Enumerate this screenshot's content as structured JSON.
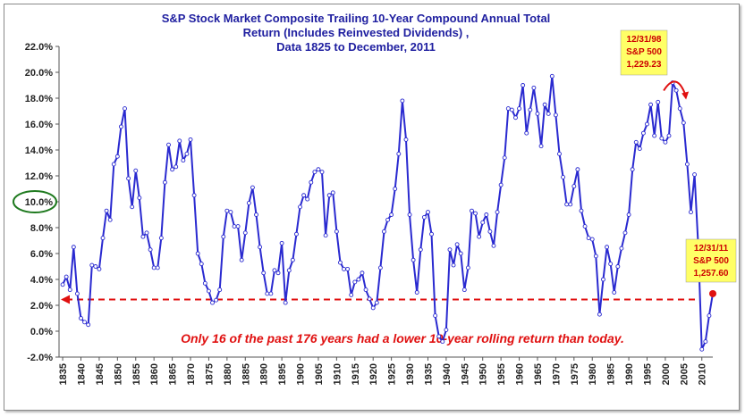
{
  "chart_data": {
    "type": "line",
    "title_lines": [
      "S&P Stock Market Composite Trailing 10-Year Compound Annual Total",
      "Return (Includes Reinvested Dividends) ,",
      "Data 1825 to December, 2011"
    ],
    "xlabel": "",
    "ylabel": "",
    "xlim": [
      1834,
      2013
    ],
    "ylim": [
      -2.0,
      22.0
    ],
    "y_ticks": [
      "-2.0%",
      "0.0%",
      "2.0%",
      "4.0%",
      "6.0%",
      "8.0%",
      "10.0%",
      "12.0%",
      "14.0%",
      "16.0%",
      "18.0%",
      "20.0%",
      "22.0%"
    ],
    "y_tick_values": [
      -2,
      0,
      2,
      4,
      6,
      8,
      10,
      12,
      14,
      16,
      18,
      20,
      22
    ],
    "x_ticks": [
      "1835",
      "1840",
      "1845",
      "1850",
      "1855",
      "1860",
      "1865",
      "1870",
      "1875",
      "1880",
      "1885",
      "1890",
      "1895",
      "1900",
      "1905",
      "1910",
      "1915",
      "1920",
      "1925",
      "1930",
      "1935",
      "1940",
      "1945",
      "1950",
      "1955",
      "1960",
      "1965",
      "1970",
      "1975",
      "1980",
      "1985",
      "1990",
      "1995",
      "2000",
      "2005",
      "2010"
    ],
    "x_tick_values": [
      1835,
      1840,
      1845,
      1850,
      1855,
      1860,
      1865,
      1870,
      1875,
      1880,
      1885,
      1890,
      1895,
      1900,
      1905,
      1910,
      1915,
      1920,
      1925,
      1930,
      1935,
      1940,
      1945,
      1950,
      1955,
      1960,
      1965,
      1970,
      1975,
      1980,
      1985,
      1990,
      1995,
      2000,
      2005,
      2010
    ],
    "grid": false,
    "highlighted_tick": "10.0%",
    "reference_line": {
      "y": 2.45,
      "label": "Only 16 of the past 176 years had a lower  10-year rolling return than today."
    },
    "series": [
      {
        "color": "#2a2ad0",
        "points": [
          [
            1835,
            3.6
          ],
          [
            1836,
            4.2
          ],
          [
            1837,
            3.2
          ],
          [
            1838,
            6.5
          ],
          [
            1839,
            2.9
          ],
          [
            1840,
            1.0
          ],
          [
            1841,
            0.7
          ],
          [
            1842,
            0.5
          ],
          [
            1843,
            5.1
          ],
          [
            1844,
            5.0
          ],
          [
            1845,
            4.8
          ],
          [
            1846,
            7.2
          ],
          [
            1847,
            9.3
          ],
          [
            1848,
            8.6
          ],
          [
            1849,
            12.9
          ],
          [
            1850,
            13.5
          ],
          [
            1851,
            15.8
          ],
          [
            1852,
            17.2
          ],
          [
            1853,
            11.8
          ],
          [
            1854,
            9.6
          ],
          [
            1855,
            12.4
          ],
          [
            1856,
            10.3
          ],
          [
            1857,
            7.3
          ],
          [
            1858,
            7.6
          ],
          [
            1859,
            6.3
          ],
          [
            1860,
            4.9
          ],
          [
            1861,
            4.9
          ],
          [
            1862,
            7.2
          ],
          [
            1863,
            11.5
          ],
          [
            1864,
            14.4
          ],
          [
            1865,
            12.5
          ],
          [
            1866,
            12.7
          ],
          [
            1867,
            14.7
          ],
          [
            1868,
            13.2
          ],
          [
            1869,
            13.7
          ],
          [
            1870,
            14.8
          ],
          [
            1871,
            10.5
          ],
          [
            1872,
            6.0
          ],
          [
            1873,
            5.2
          ],
          [
            1874,
            3.7
          ],
          [
            1875,
            3.1
          ],
          [
            1876,
            2.2
          ],
          [
            1877,
            2.4
          ],
          [
            1878,
            3.2
          ],
          [
            1879,
            7.3
          ],
          [
            1880,
            9.3
          ],
          [
            1881,
            9.2
          ],
          [
            1882,
            8.1
          ],
          [
            1883,
            8.1
          ],
          [
            1884,
            5.5
          ],
          [
            1885,
            7.6
          ],
          [
            1886,
            9.9
          ],
          [
            1887,
            11.1
          ],
          [
            1888,
            9.0
          ],
          [
            1889,
            6.5
          ],
          [
            1890,
            4.5
          ],
          [
            1891,
            2.9
          ],
          [
            1892,
            2.9
          ],
          [
            1893,
            4.7
          ],
          [
            1894,
            4.5
          ],
          [
            1895,
            6.8
          ],
          [
            1896,
            2.2
          ],
          [
            1897,
            4.7
          ],
          [
            1898,
            5.5
          ],
          [
            1899,
            7.5
          ],
          [
            1900,
            9.6
          ],
          [
            1901,
            10.5
          ],
          [
            1902,
            10.2
          ],
          [
            1903,
            11.5
          ],
          [
            1904,
            12.3
          ],
          [
            1905,
            12.5
          ],
          [
            1906,
            12.3
          ],
          [
            1907,
            7.4
          ],
          [
            1908,
            10.5
          ],
          [
            1909,
            10.7
          ],
          [
            1910,
            7.7
          ],
          [
            1911,
            5.3
          ],
          [
            1912,
            4.8
          ],
          [
            1913,
            4.8
          ],
          [
            1914,
            2.8
          ],
          [
            1915,
            3.8
          ],
          [
            1916,
            4.0
          ],
          [
            1917,
            4.5
          ],
          [
            1918,
            3.2
          ],
          [
            1919,
            2.5
          ],
          [
            1920,
            1.8
          ],
          [
            1921,
            2.2
          ],
          [
            1922,
            4.9
          ],
          [
            1923,
            7.7
          ],
          [
            1924,
            8.6
          ],
          [
            1925,
            9.0
          ],
          [
            1926,
            11.0
          ],
          [
            1927,
            13.7
          ],
          [
            1928,
            17.8
          ],
          [
            1929,
            14.8
          ],
          [
            1930,
            9.0
          ],
          [
            1931,
            5.5
          ],
          [
            1932,
            3.0
          ],
          [
            1933,
            6.3
          ],
          [
            1934,
            8.8
          ],
          [
            1935,
            9.2
          ],
          [
            1936,
            7.5
          ],
          [
            1937,
            1.2
          ],
          [
            1938,
            -0.4
          ],
          [
            1939,
            -0.8
          ],
          [
            1940,
            0.1
          ],
          [
            1941,
            6.3
          ],
          [
            1942,
            5.1
          ],
          [
            1943,
            6.7
          ],
          [
            1944,
            6.0
          ],
          [
            1945,
            3.2
          ],
          [
            1946,
            4.9
          ],
          [
            1947,
            9.3
          ],
          [
            1948,
            9.1
          ],
          [
            1949,
            7.3
          ],
          [
            1950,
            8.4
          ],
          [
            1951,
            9.0
          ],
          [
            1952,
            7.7
          ],
          [
            1953,
            6.6
          ],
          [
            1954,
            9.2
          ],
          [
            1955,
            11.3
          ],
          [
            1956,
            13.4
          ],
          [
            1957,
            17.2
          ],
          [
            1958,
            17.1
          ],
          [
            1959,
            16.5
          ],
          [
            1960,
            17.2
          ],
          [
            1961,
            19.0
          ],
          [
            1962,
            15.3
          ],
          [
            1963,
            17.1
          ],
          [
            1964,
            18.8
          ],
          [
            1965,
            16.8
          ],
          [
            1966,
            14.3
          ],
          [
            1967,
            17.5
          ],
          [
            1968,
            16.8
          ],
          [
            1969,
            19.7
          ],
          [
            1970,
            16.7
          ],
          [
            1971,
            13.7
          ],
          [
            1972,
            11.9
          ],
          [
            1973,
            9.8
          ],
          [
            1974,
            9.8
          ],
          [
            1975,
            11.2
          ],
          [
            1976,
            12.5
          ],
          [
            1977,
            9.3
          ],
          [
            1978,
            8.1
          ],
          [
            1979,
            7.2
          ],
          [
            1980,
            7.1
          ],
          [
            1981,
            5.8
          ],
          [
            1982,
            1.3
          ],
          [
            1983,
            4.0
          ],
          [
            1984,
            6.5
          ],
          [
            1985,
            5.2
          ],
          [
            1986,
            3.0
          ],
          [
            1987,
            5.0
          ],
          [
            1988,
            6.4
          ],
          [
            1989,
            7.6
          ],
          [
            1990,
            9.0
          ],
          [
            1991,
            12.5
          ],
          [
            1992,
            14.6
          ],
          [
            1993,
            14.1
          ],
          [
            1994,
            15.3
          ],
          [
            1995,
            16.0
          ],
          [
            1996,
            17.5
          ],
          [
            1997,
            15.1
          ],
          [
            1998,
            17.7
          ],
          [
            1999,
            14.9
          ],
          [
            2000,
            14.6
          ],
          [
            2001,
            15.1
          ],
          [
            2002,
            19.2
          ],
          [
            2003,
            18.6
          ],
          [
            2004,
            17.2
          ],
          [
            2005,
            16.1
          ],
          [
            2006,
            12.9
          ],
          [
            2007,
            9.2
          ],
          [
            2008,
            12.1
          ],
          [
            2009,
            6.6
          ],
          [
            2010,
            -1.4
          ],
          [
            2011,
            -0.8
          ],
          [
            2012,
            1.2
          ],
          [
            2013,
            2.9
          ]
        ]
      }
    ],
    "annotations": [
      {
        "lines": [
          "12/31/98",
          "S&P 500",
          "1,229.23"
        ],
        "anchor_x": 2002.5,
        "anchor_y": 19.0
      },
      {
        "lines": [
          "12/31/11",
          "S&P 500",
          "1,257.60"
        ],
        "anchor_x": 2013,
        "anchor_y": 2.9
      }
    ]
  },
  "colors": {
    "line": "#2a2ad0",
    "note": "#e01010",
    "callout_bg": "#ffff66",
    "circle": "#1f7a1f",
    "title": "#1f1fa0"
  }
}
